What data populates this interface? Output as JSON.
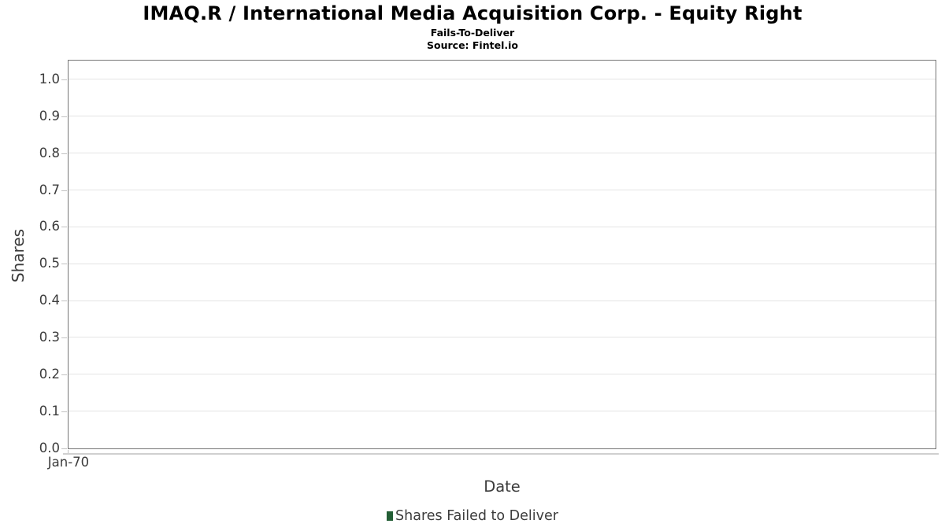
{
  "chart_data": {
    "type": "bar",
    "title": "IMAQ.R / International Media Acquisition Corp. - Equity Right",
    "subtitle": "Fails-To-Deliver",
    "source": "Source: Fintel.io",
    "xlabel": "Date",
    "ylabel": "Shares",
    "x_tick_labels": [
      "Jan-70"
    ],
    "y_ticks": [
      0.0,
      0.1,
      0.2,
      0.3,
      0.4,
      0.5,
      0.6,
      0.7,
      0.8,
      0.9,
      1.0
    ],
    "y_tick_labels": [
      "0.0",
      "0.1",
      "0.2",
      "0.3",
      "0.4",
      "0.5",
      "0.6",
      "0.7",
      "0.8",
      "0.9",
      "1.0"
    ],
    "ylim": [
      0.0,
      1.05
    ],
    "grid": true,
    "legend_position": "bottom-center",
    "series": [
      {
        "name": "Shares Failed to Deliver",
        "type": "bar",
        "color": "#235e35",
        "x": [],
        "values": []
      }
    ]
  },
  "colors": {
    "background": "#ffffff",
    "title_text": "#000000",
    "axis_text": "#3c3c3c",
    "plot_border": "#767676",
    "gridline": "#e4e4e4",
    "tick_mark": "#c2c2c2",
    "baseline_shadow": "#d0d0d0",
    "legend_marker": "#235e35"
  }
}
